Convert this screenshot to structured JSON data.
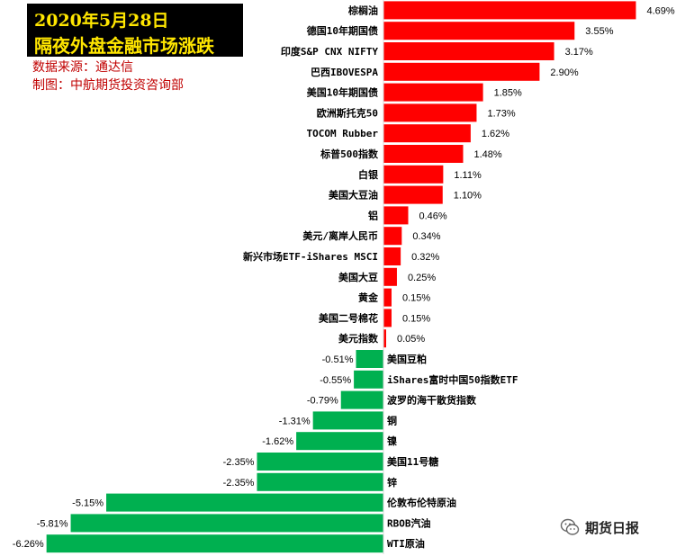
{
  "header": {
    "title_line1": "2020年5月28日",
    "title_line2": "隔夜外盘金融市场涨跌",
    "source": "数据来源：通达信",
    "made_by": "制图：中航期货投资咨询部"
  },
  "watermark": {
    "text": "期货日报",
    "icon": "wechat-icon"
  },
  "colors": {
    "positive": "#ff0000",
    "negative": "#00b050",
    "title_bg": "#000000",
    "title_text": "#ffe600",
    "note_text": "#c00000"
  },
  "chart_data": {
    "type": "bar",
    "orientation": "horizontal",
    "categories": [
      "棕榈油",
      "德国10年期国债",
      "印度S&P CNX NIFTY",
      "巴西IBOVESPA",
      "美国10年期国债",
      "欧洲斯托克50",
      "TOCOM Rubber",
      "标普500指数",
      "白银",
      "美国大豆油",
      "铝",
      "美元/离岸人民币",
      "新兴市场ETF-iShares MSCI",
      "美国大豆",
      "黄金",
      "美国二号棉花",
      "美元指数",
      "美国豆粕",
      "iShares富时中国50指数ETF",
      "波罗的海干散货指数",
      "铜",
      "镍",
      "美国11号糖",
      "锌",
      "伦敦布伦特原油",
      "RBOB汽油",
      "WTI原油"
    ],
    "values": [
      4.69,
      3.55,
      3.17,
      2.9,
      1.85,
      1.73,
      1.62,
      1.48,
      1.11,
      1.1,
      0.46,
      0.34,
      0.32,
      0.25,
      0.15,
      0.15,
      0.05,
      -0.51,
      -0.55,
      -0.79,
      -1.31,
      -1.62,
      -2.35,
      -2.35,
      -5.15,
      -5.81,
      -6.26
    ],
    "labels": [
      "4.69%",
      "3.55%",
      "3.17%",
      "2.90%",
      "1.85%",
      "1.73%",
      "1.62%",
      "1.48%",
      "1.11%",
      "1.10%",
      "0.46%",
      "0.34%",
      "0.32%",
      "0.25%",
      "0.15%",
      "0.15%",
      "0.05%",
      "-0.51%",
      "-0.55%",
      "-0.79%",
      "-1.31%",
      "-1.62%",
      "-2.35%",
      "-2.35%",
      "-5.15%",
      "-5.81%",
      "-6.26%"
    ],
    "unit": "%",
    "grid": false,
    "legend": "none"
  }
}
